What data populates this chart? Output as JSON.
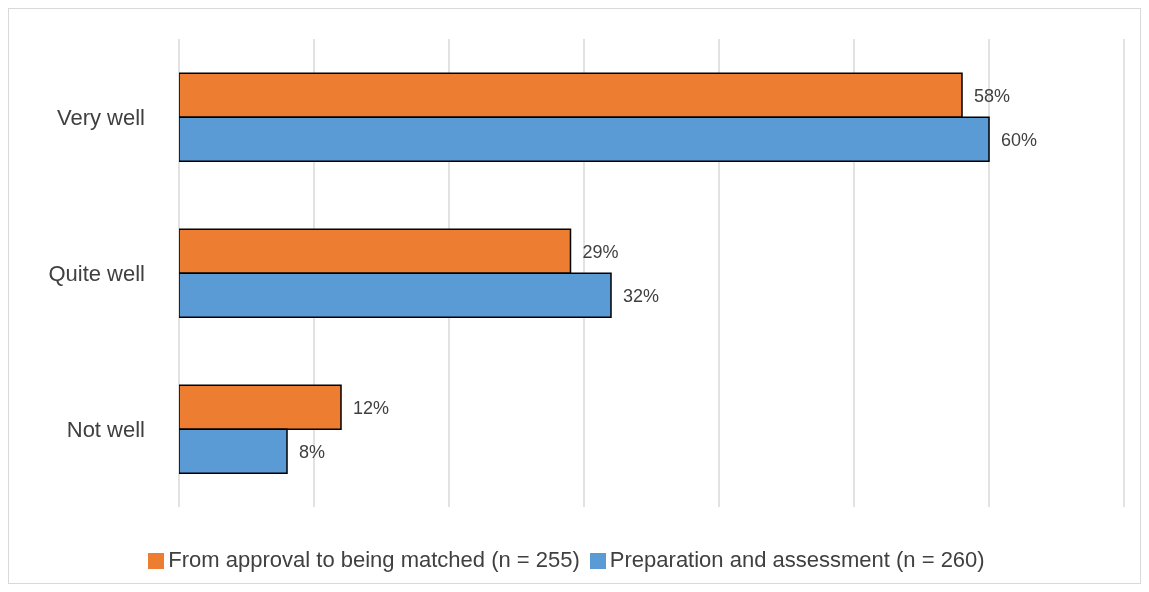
{
  "chart_data": {
    "type": "bar",
    "orientation": "horizontal",
    "categories": [
      "Very well",
      "Quite well",
      "Not well"
    ],
    "series": [
      {
        "name": "From approval to being matched (n = 255)",
        "color": "#ed7d31",
        "values": [
          58,
          29,
          12
        ],
        "value_labels": [
          "58%",
          "29%",
          "12%"
        ]
      },
      {
        "name": "Preparation and assessment (n = 260)",
        "color": "#5b9bd5",
        "values": [
          60,
          32,
          8
        ],
        "value_labels": [
          "60%",
          "32%",
          "8%"
        ]
      }
    ],
    "xlim": [
      0,
      70
    ],
    "xticks": [
      {
        "value": 0,
        "label": null
      },
      {
        "value": 10,
        "label": null
      },
      {
        "value": 20,
        "label": null
      },
      {
        "value": 30,
        "label": null
      },
      {
        "value": 40,
        "label": null
      },
      {
        "value": 50,
        "label": null
      },
      {
        "value": 60,
        "label": null
      },
      {
        "value": 70,
        "label": null
      }
    ],
    "tick_labels": "y",
    "grid": "x",
    "legend": "bottom"
  }
}
